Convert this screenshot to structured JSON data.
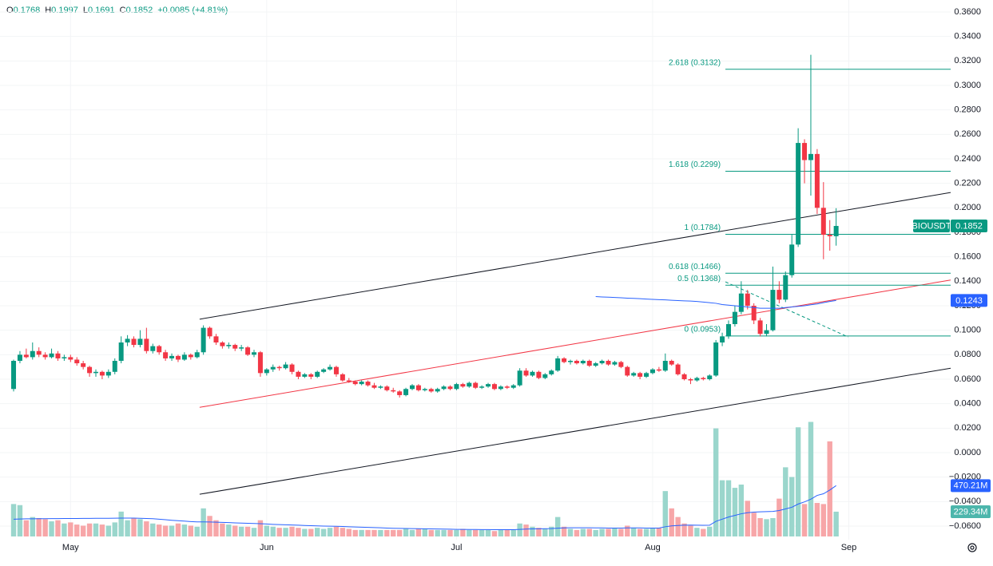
{
  "chart_data": {
    "type": "candlestick",
    "header": [
      {
        "key": "O",
        "value": "0.1768"
      },
      {
        "key": "H",
        "value": "0.1997"
      },
      {
        "key": "L",
        "value": "0.1691"
      },
      {
        "key": "C",
        "value": "0.1852"
      }
    ],
    "change": "+0.0085 (+4.81%)",
    "up_color": "#089981",
    "down_color": "#f23645",
    "volume_up_color": "#9ad6cc",
    "volume_down_color": "#f7a6a8",
    "grid": true,
    "xlim": [
      -2.15,
      148.1
    ],
    "xticks": [
      {
        "value": 9,
        "label": "May"
      },
      {
        "value": 40,
        "label": "Jun"
      },
      {
        "value": 70,
        "label": "Jul"
      },
      {
        "value": 101,
        "label": "Aug"
      },
      {
        "value": 132,
        "label": "Sep"
      }
    ],
    "ylim": [
      -0.06,
      0.36
    ],
    "yticks": [
      {
        "value": 0.36,
        "label": "0.3600"
      },
      {
        "value": 0.34,
        "label": "0.3400"
      },
      {
        "value": 0.32,
        "label": "0.3200"
      },
      {
        "value": 0.3,
        "label": "0.3000"
      },
      {
        "value": 0.28,
        "label": "0.2800"
      },
      {
        "value": 0.26,
        "label": "0.2600"
      },
      {
        "value": 0.24,
        "label": "0.2400"
      },
      {
        "value": 0.22,
        "label": "0.2200"
      },
      {
        "value": 0.2,
        "label": "0.2000"
      },
      {
        "value": 0.18,
        "label": "0.1800"
      },
      {
        "value": 0.16,
        "label": "0.1600"
      },
      {
        "value": 0.14,
        "label": "0.1400"
      },
      {
        "value": 0.12,
        "label": "0.1200"
      },
      {
        "value": 0.1,
        "label": "0.1000"
      },
      {
        "value": 0.08,
        "label": "0.0800"
      },
      {
        "value": 0.06,
        "label": "0.0600"
      },
      {
        "value": 0.04,
        "label": "0.0400"
      },
      {
        "value": 0.02,
        "label": "0.0200"
      },
      {
        "value": 0,
        "label": "0.0000"
      },
      {
        "value": -0.02,
        "label": "−0.0200"
      },
      {
        "value": -0.04,
        "label": "−0.0400"
      },
      {
        "value": -0.06,
        "label": "−0.0600"
      }
    ],
    "candles": [
      [
        0.052,
        0.076,
        0.05,
        0.075
      ],
      [
        0.075,
        0.083,
        0.073,
        0.08
      ],
      [
        0.08,
        0.085,
        0.077,
        0.078
      ],
      [
        0.078,
        0.09,
        0.076,
        0.083
      ],
      [
        0.083,
        0.086,
        0.078,
        0.08
      ],
      [
        0.08,
        0.082,
        0.076,
        0.078
      ],
      [
        0.078,
        0.085,
        0.077,
        0.081
      ],
      [
        0.081,
        0.083,
        0.075,
        0.077
      ],
      [
        0.077,
        0.08,
        0.075,
        0.078
      ],
      [
        0.078,
        0.08,
        0.074,
        0.076
      ],
      [
        0.076,
        0.078,
        0.071,
        0.073
      ],
      [
        0.073,
        0.075,
        0.068,
        0.07
      ],
      [
        0.07,
        0.071,
        0.062,
        0.065
      ],
      [
        0.065,
        0.068,
        0.062,
        0.066
      ],
      [
        0.066,
        0.067,
        0.06,
        0.063
      ],
      [
        0.063,
        0.068,
        0.061,
        0.066
      ],
      [
        0.066,
        0.077,
        0.064,
        0.075
      ],
      [
        0.075,
        0.095,
        0.073,
        0.09
      ],
      [
        0.09,
        0.096,
        0.087,
        0.093
      ],
      [
        0.093,
        0.095,
        0.086,
        0.088
      ],
      [
        0.088,
        0.1,
        0.086,
        0.093
      ],
      [
        0.093,
        0.102,
        0.081,
        0.083
      ],
      [
        0.083,
        0.089,
        0.081,
        0.087
      ],
      [
        0.087,
        0.088,
        0.08,
        0.082
      ],
      [
        0.082,
        0.084,
        0.075,
        0.077
      ],
      [
        0.077,
        0.081,
        0.075,
        0.079
      ],
      [
        0.079,
        0.08,
        0.074,
        0.076
      ],
      [
        0.076,
        0.082,
        0.075,
        0.08
      ],
      [
        0.08,
        0.081,
        0.076,
        0.078
      ],
      [
        0.078,
        0.084,
        0.077,
        0.082
      ],
      [
        0.082,
        0.104,
        0.08,
        0.102
      ],
      [
        0.102,
        0.103,
        0.093,
        0.095
      ],
      [
        0.095,
        0.097,
        0.088,
        0.09
      ],
      [
        0.09,
        0.091,
        0.085,
        0.087
      ],
      [
        0.087,
        0.09,
        0.085,
        0.088
      ],
      [
        0.088,
        0.089,
        0.083,
        0.085
      ],
      [
        0.085,
        0.088,
        0.083,
        0.086
      ],
      [
        0.086,
        0.087,
        0.079,
        0.08
      ],
      [
        0.08,
        0.084,
        0.078,
        0.082
      ],
      [
        0.082,
        0.083,
        0.062,
        0.065
      ],
      [
        0.065,
        0.069,
        0.063,
        0.068
      ],
      [
        0.068,
        0.072,
        0.066,
        0.07
      ],
      [
        0.07,
        0.071,
        0.067,
        0.069
      ],
      [
        0.069,
        0.074,
        0.068,
        0.072
      ],
      [
        0.072,
        0.073,
        0.064,
        0.066
      ],
      [
        0.066,
        0.067,
        0.06,
        0.062
      ],
      [
        0.062,
        0.065,
        0.061,
        0.064
      ],
      [
        0.064,
        0.065,
        0.06,
        0.062
      ],
      [
        0.062,
        0.067,
        0.061,
        0.066
      ],
      [
        0.066,
        0.069,
        0.065,
        0.068
      ],
      [
        0.068,
        0.072,
        0.067,
        0.07
      ],
      [
        0.07,
        0.071,
        0.062,
        0.064
      ],
      [
        0.064,
        0.065,
        0.058,
        0.059
      ],
      [
        0.059,
        0.061,
        0.057,
        0.058
      ],
      [
        0.058,
        0.059,
        0.055,
        0.056
      ],
      [
        0.056,
        0.059,
        0.055,
        0.058
      ],
      [
        0.058,
        0.059,
        0.054,
        0.055
      ],
      [
        0.055,
        0.057,
        0.052,
        0.053
      ],
      [
        0.053,
        0.055,
        0.052,
        0.054
      ],
      [
        0.054,
        0.055,
        0.05,
        0.051
      ],
      [
        0.051,
        0.053,
        0.049,
        0.05
      ],
      [
        0.05,
        0.051,
        0.045,
        0.047
      ],
      [
        0.047,
        0.053,
        0.046,
        0.052
      ],
      [
        0.052,
        0.056,
        0.051,
        0.055
      ],
      [
        0.055,
        0.056,
        0.05,
        0.051
      ],
      [
        0.051,
        0.053,
        0.05,
        0.052
      ],
      [
        0.052,
        0.053,
        0.049,
        0.05
      ],
      [
        0.05,
        0.053,
        0.049,
        0.052
      ],
      [
        0.052,
        0.055,
        0.051,
        0.054
      ],
      [
        0.054,
        0.055,
        0.051,
        0.052
      ],
      [
        0.052,
        0.057,
        0.051,
        0.056
      ],
      [
        0.056,
        0.057,
        0.053,
        0.054
      ],
      [
        0.054,
        0.058,
        0.053,
        0.057
      ],
      [
        0.057,
        0.058,
        0.052,
        0.053
      ],
      [
        0.053,
        0.055,
        0.052,
        0.054
      ],
      [
        0.054,
        0.057,
        0.053,
        0.056
      ],
      [
        0.056,
        0.057,
        0.051,
        0.052
      ],
      [
        0.052,
        0.055,
        0.051,
        0.054
      ],
      [
        0.054,
        0.055,
        0.052,
        0.053
      ],
      [
        0.053,
        0.056,
        0.052,
        0.055
      ],
      [
        0.055,
        0.069,
        0.054,
        0.067
      ],
      [
        0.067,
        0.069,
        0.062,
        0.063
      ],
      [
        0.063,
        0.067,
        0.062,
        0.066
      ],
      [
        0.066,
        0.067,
        0.06,
        0.061
      ],
      [
        0.061,
        0.065,
        0.06,
        0.064
      ],
      [
        0.064,
        0.068,
        0.063,
        0.067
      ],
      [
        0.067,
        0.079,
        0.066,
        0.077
      ],
      [
        0.077,
        0.078,
        0.073,
        0.074
      ],
      [
        0.074,
        0.076,
        0.072,
        0.075
      ],
      [
        0.075,
        0.076,
        0.072,
        0.073
      ],
      [
        0.073,
        0.076,
        0.072,
        0.075
      ],
      [
        0.075,
        0.076,
        0.07,
        0.071
      ],
      [
        0.071,
        0.074,
        0.07,
        0.073
      ],
      [
        0.073,
        0.076,
        0.072,
        0.075
      ],
      [
        0.075,
        0.076,
        0.071,
        0.072
      ],
      [
        0.072,
        0.075,
        0.071,
        0.074
      ],
      [
        0.074,
        0.075,
        0.069,
        0.07
      ],
      [
        0.07,
        0.071,
        0.062,
        0.063
      ],
      [
        0.063,
        0.066,
        0.062,
        0.065
      ],
      [
        0.065,
        0.066,
        0.06,
        0.062
      ],
      [
        0.062,
        0.066,
        0.061,
        0.065
      ],
      [
        0.065,
        0.069,
        0.064,
        0.068
      ],
      [
        0.068,
        0.07,
        0.066,
        0.067
      ],
      [
        0.067,
        0.081,
        0.066,
        0.075
      ],
      [
        0.075,
        0.076,
        0.071,
        0.072
      ],
      [
        0.072,
        0.073,
        0.063,
        0.064
      ],
      [
        0.064,
        0.065,
        0.059,
        0.06
      ],
      [
        0.06,
        0.061,
        0.056,
        0.059
      ],
      [
        0.059,
        0.062,
        0.058,
        0.061
      ],
      [
        0.061,
        0.062,
        0.059,
        0.06
      ],
      [
        0.06,
        0.064,
        0.059,
        0.063
      ],
      [
        0.063,
        0.092,
        0.062,
        0.09
      ],
      [
        0.09,
        0.098,
        0.087,
        0.095
      ],
      [
        0.095,
        0.108,
        0.093,
        0.105
      ],
      [
        0.105,
        0.12,
        0.103,
        0.115
      ],
      [
        0.115,
        0.14,
        0.113,
        0.13
      ],
      [
        0.13,
        0.133,
        0.117,
        0.12
      ],
      [
        0.12,
        0.122,
        0.105,
        0.108
      ],
      [
        0.108,
        0.11,
        0.095,
        0.097
      ],
      [
        0.097,
        0.105,
        0.095,
        0.1
      ],
      [
        0.1,
        0.152,
        0.099,
        0.133
      ],
      [
        0.133,
        0.14,
        0.122,
        0.125
      ],
      [
        0.125,
        0.148,
        0.123,
        0.145
      ],
      [
        0.145,
        0.178,
        0.143,
        0.17
      ],
      [
        0.17,
        0.265,
        0.168,
        0.253
      ],
      [
        0.253,
        0.256,
        0.22,
        0.239
      ],
      [
        0.239,
        0.325,
        0.21,
        0.244
      ],
      [
        0.244,
        0.248,
        0.195,
        0.2
      ],
      [
        0.2,
        0.221,
        0.158,
        0.178
      ],
      [
        0.178,
        0.19,
        0.165,
        0.1768
      ],
      [
        0.1768,
        0.1997,
        0.1691,
        0.1852
      ]
    ],
    "price_ma": {
      "color": "#2962ff",
      "values": [
        null,
        null,
        null,
        null,
        null,
        null,
        null,
        null,
        null,
        null,
        null,
        null,
        null,
        null,
        null,
        null,
        null,
        null,
        null,
        null,
        null,
        null,
        null,
        null,
        null,
        null,
        null,
        null,
        null,
        null,
        null,
        null,
        null,
        null,
        null,
        null,
        null,
        null,
        null,
        null,
        null,
        null,
        null,
        null,
        null,
        null,
        null,
        null,
        null,
        null,
        null,
        null,
        null,
        null,
        null,
        null,
        null,
        null,
        null,
        null,
        null,
        null,
        null,
        null,
        null,
        null,
        null,
        null,
        null,
        null,
        null,
        null,
        null,
        null,
        null,
        null,
        null,
        null,
        null,
        null,
        null,
        null,
        null,
        null,
        null,
        null,
        null,
        null,
        null,
        null,
        null,
        null,
        0.1275,
        0.1272,
        0.127,
        0.1268,
        0.1265,
        0.1262,
        0.126,
        0.1258,
        0.1255,
        0.1252,
        0.125,
        0.1248,
        0.1245,
        0.1242,
        0.124,
        0.1238,
        0.1235,
        0.123,
        0.1225,
        0.122,
        0.121,
        0.1205,
        0.12,
        0.1195,
        0.119,
        0.1185,
        0.118,
        0.118,
        0.118,
        0.118,
        0.1185,
        0.119,
        0.1195,
        0.12,
        0.1208,
        0.1215,
        0.1225,
        0.1235,
        0.1243
      ]
    },
    "volume": {
      "ylim": [
        0,
        1300
      ],
      "values": [
        300,
        290,
        150,
        180,
        170,
        160,
        140,
        150,
        120,
        130,
        110,
        100,
        120,
        120,
        110,
        100,
        130,
        230,
        150,
        170,
        160,
        140,
        120,
        110,
        100,
        100,
        120,
        110,
        100,
        90,
        260,
        190,
        150,
        120,
        110,
        100,
        90,
        90,
        80,
        150,
        100,
        90,
        80,
        80,
        90,
        80,
        70,
        70,
        80,
        70,
        80,
        90,
        80,
        70,
        60,
        60,
        60,
        60,
        60,
        60,
        60,
        60,
        70,
        60,
        70,
        70,
        60,
        60,
        60,
        60,
        60,
        70,
        60,
        60,
        60,
        60,
        50,
        60,
        60,
        60,
        120,
        110,
        90,
        80,
        70,
        90,
        180,
        90,
        70,
        60,
        70,
        70,
        60,
        70,
        70,
        80,
        70,
        100,
        80,
        70,
        70,
        80,
        80,
        420,
        260,
        180,
        120,
        100,
        80,
        70,
        90,
        1000,
        520,
        520,
        450,
        480,
        330,
        220,
        170,
        160,
        170,
        350,
        640,
        550,
        1010,
        300,
        1060,
        310,
        300,
        880,
        229.34
      ],
      "ma_color": "#2962ff",
      "ma": [
        160,
        162,
        163,
        163,
        164,
        164,
        165,
        165,
        166,
        166,
        166,
        167,
        167,
        168,
        168,
        168,
        169,
        170,
        170,
        170,
        168,
        166,
        164,
        160,
        155,
        150,
        146,
        142,
        138,
        135,
        135,
        134,
        132,
        130,
        128,
        126,
        124,
        122,
        120,
        118,
        115,
        112,
        110,
        108,
        106,
        104,
        102,
        100,
        98,
        96,
        95,
        94,
        92,
        90,
        88,
        86,
        84,
        82,
        80,
        78,
        76,
        75,
        74,
        73,
        72,
        71,
        70,
        69,
        68,
        67,
        66,
        66,
        65,
        65,
        64,
        64,
        63,
        63,
        63,
        63,
        66,
        68,
        70,
        71,
        72,
        73,
        77,
        79,
        80,
        80,
        80,
        80,
        79,
        79,
        78,
        78,
        78,
        79,
        79,
        79,
        78,
        78,
        78,
        90,
        98,
        102,
        104,
        105,
        104,
        103,
        104,
        140,
        160,
        180,
        195,
        210,
        220,
        225,
        228,
        230,
        232,
        240,
        255,
        270,
        300,
        320,
        345,
        380,
        395,
        430,
        470.21
      ]
    },
    "trendlines": [
      {
        "color": "#131722",
        "x": [
          29.4,
          148.1
        ],
        "y": [
          0.109,
          0.2125
        ]
      },
      {
        "color": "#131722",
        "x": [
          29.4,
          148.1
        ],
        "y": [
          -0.034,
          0.069
        ]
      },
      {
        "color": "#f23645",
        "x": [
          29.4,
          148.1
        ],
        "y": [
          0.037,
          0.141
        ]
      }
    ],
    "fib": {
      "color": "#089981",
      "x": [
        112.5,
        148.1
      ],
      "levels": [
        {
          "label": "2.618 (0.3132)",
          "value": 0.3132
        },
        {
          "label": "1.618 (0.2299)",
          "value": 0.2299
        },
        {
          "label": "1 (0.1784)",
          "value": 0.1784
        },
        {
          "label": "0.618 (0.1466)",
          "value": 0.1466
        },
        {
          "label": "0.5 (0.1368)",
          "value": 0.1368
        },
        {
          "label": "0 (0.0953)",
          "value": 0.0953
        }
      ]
    },
    "dashed_line": {
      "color": "#089981",
      "x": [
        112.5,
        131.9
      ],
      "y": [
        0.1395,
        0.0945
      ]
    },
    "price_tags": [
      {
        "name": "BIOUSDT",
        "value": 0.1852,
        "color": "#089981"
      },
      {
        "value": 0.1243,
        "color": "#2962ff"
      }
    ],
    "volume_tags": [
      {
        "value": 470.21,
        "label": "470.21M",
        "color": "#2962ff"
      },
      {
        "value": 229.34,
        "label": "229.34M",
        "color": "#4db6ac"
      }
    ]
  }
}
